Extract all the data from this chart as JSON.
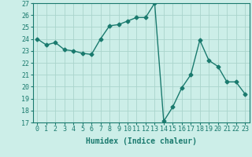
{
  "x": [
    0,
    1,
    2,
    3,
    4,
    5,
    6,
    7,
    8,
    9,
    10,
    11,
    12,
    13,
    14,
    15,
    16,
    17,
    18,
    19,
    20,
    21,
    22,
    23
  ],
  "y": [
    24,
    23.5,
    23.7,
    23.1,
    23.0,
    22.8,
    22.7,
    24.0,
    25.1,
    25.2,
    25.5,
    25.8,
    25.8,
    27.0,
    17.1,
    18.3,
    19.9,
    21.0,
    23.9,
    22.2,
    21.7,
    20.4,
    20.4,
    19.4
  ],
  "line_color": "#1a7a6e",
  "marker": "D",
  "marker_size": 2.5,
  "bg_color": "#cceee8",
  "grid_color": "#aad4cc",
  "xlabel": "Humidex (Indice chaleur)",
  "ylim": [
    17,
    27
  ],
  "xlim": [
    -0.5,
    23.5
  ],
  "yticks": [
    17,
    18,
    19,
    20,
    21,
    22,
    23,
    24,
    25,
    26,
    27
  ],
  "xticks": [
    0,
    1,
    2,
    3,
    4,
    5,
    6,
    7,
    8,
    9,
    10,
    11,
    12,
    13,
    14,
    15,
    16,
    17,
    18,
    19,
    20,
    21,
    22,
    23
  ],
  "xlabel_fontsize": 7,
  "tick_fontsize": 6,
  "line_width": 1.0
}
